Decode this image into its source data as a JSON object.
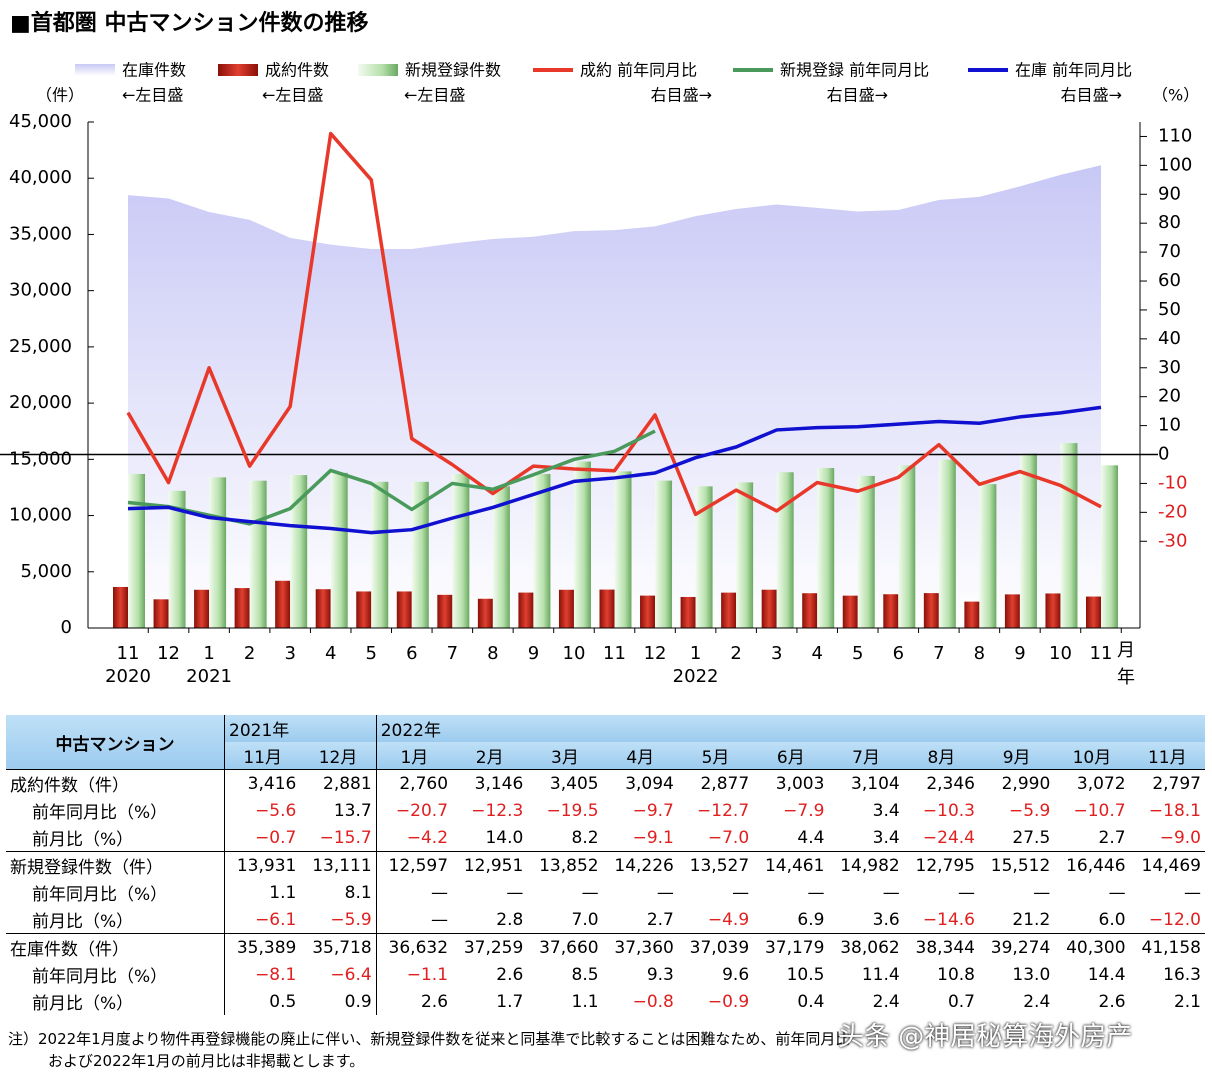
{
  "title": "■首都圏 中古マンション件数の推移",
  "chart_data": {
    "type": "combo",
    "y_unit": "（件）",
    "y2_unit": "（%）",
    "categories": [
      "11",
      "12",
      "1",
      "2",
      "3",
      "4",
      "5",
      "6",
      "7",
      "8",
      "9",
      "10",
      "11",
      "12",
      "1",
      "2",
      "3",
      "4",
      "5",
      "6",
      "7",
      "8",
      "9",
      "10",
      "11"
    ],
    "year_labels": [
      "2020",
      null,
      "2021",
      null,
      null,
      null,
      null,
      null,
      null,
      null,
      null,
      null,
      null,
      null,
      "2022",
      null,
      null,
      null,
      null,
      null,
      null,
      null,
      null,
      null,
      null
    ],
    "x_month_unit": "月",
    "x_year_unit": "年",
    "ylim": [
      0,
      45000
    ],
    "yticks": [
      0,
      {
        "value": 5000,
        "label": "5,000"
      },
      {
        "value": 10000,
        "label": "10,000"
      },
      {
        "value": 15000,
        "label": "15,000"
      },
      {
        "value": 20000,
        "label": "20,000"
      },
      {
        "value": 25000,
        "label": "25,000"
      },
      {
        "value": 30000,
        "label": "30,000"
      },
      {
        "value": 35000,
        "label": "35,000"
      },
      {
        "value": 40000,
        "label": "40,000"
      },
      {
        "value": 45000,
        "label": "45,000"
      }
    ],
    "y2lim": [
      -60,
      115
    ],
    "y2ticks": [
      -30,
      -20,
      -10,
      0,
      10,
      20,
      30,
      40,
      50,
      60,
      70,
      80,
      90,
      100,
      110
    ],
    "zero_line": true,
    "series": [
      {
        "name": "在庫件数",
        "note": "←左目盛",
        "kind": "area",
        "color": "#c8c8f6",
        "values": [
          38500,
          38200,
          37000,
          36300,
          34700,
          34100,
          33700,
          33700,
          34200,
          34600,
          34800,
          35300,
          35389,
          35718,
          36632,
          37259,
          37660,
          37360,
          37039,
          37179,
          38062,
          38344,
          39274,
          40300,
          41158
        ]
      },
      {
        "name": "成約件数",
        "note": "←左目盛",
        "kind": "bar",
        "color": "#c0281c",
        "values": [
          3650,
          2550,
          3400,
          3550,
          4200,
          3450,
          3250,
          3250,
          2950,
          2600,
          3150,
          3400,
          3416,
          2881,
          2760,
          3146,
          3405,
          3094,
          2877,
          3003,
          3104,
          2346,
          2990,
          3072,
          2797
        ]
      },
      {
        "name": "新規登録件数",
        "note": "←左目盛",
        "kind": "bar",
        "color": "#a6d89e",
        "values": [
          13700,
          12200,
          13400,
          13100,
          13600,
          13800,
          13000,
          13000,
          13700,
          12600,
          13700,
          14800,
          13931,
          13111,
          12597,
          12951,
          13852,
          14226,
          13527,
          14461,
          14982,
          12795,
          15512,
          16446,
          14469
        ]
      },
      {
        "name": "成約 前年同月比",
        "note": "右目盛→",
        "kind": "line",
        "axis": "y2",
        "color": "#e8382a",
        "values": [
          14.5,
          -9.7,
          30,
          -4,
          16.6,
          111,
          95,
          5.5,
          -3.5,
          -13.5,
          -4,
          -5,
          -5.6,
          13.7,
          -20.7,
          -12.3,
          -19.5,
          -9.7,
          -12.7,
          -7.9,
          3.4,
          -10.3,
          -5.9,
          -10.7,
          -18.1
        ]
      },
      {
        "name": "新規登録 前年同月比",
        "note": "右目盛→",
        "kind": "line",
        "axis": "y2",
        "color": "#4a9a5c",
        "values": [
          -16.6,
          -18,
          -21,
          -24,
          -18.7,
          -5.5,
          -10,
          -19,
          -10,
          -12,
          -7,
          -1.7,
          1.1,
          8.1,
          null,
          null,
          null,
          null,
          null,
          null,
          null,
          null,
          null,
          null,
          null
        ]
      },
      {
        "name": "在庫 前年同月比",
        "note": "右目盛→",
        "kind": "line",
        "axis": "y2",
        "color": "#1010d0",
        "values": [
          -18.7,
          -18.3,
          -21.8,
          -23.2,
          -24.6,
          -25.6,
          -27,
          -26,
          -22,
          -18.3,
          -13.8,
          -9.3,
          -8.1,
          -6.4,
          -1.1,
          2.6,
          8.5,
          9.3,
          9.6,
          10.5,
          11.4,
          10.8,
          13.0,
          14.4,
          16.3
        ]
      }
    ]
  },
  "table": {
    "corner": "中古マンション",
    "years": [
      "2021年",
      "2022年"
    ],
    "months": [
      "11月",
      "12月",
      "1月",
      "2月",
      "3月",
      "4月",
      "5月",
      "6月",
      "7月",
      "8月",
      "9月",
      "10月",
      "11月"
    ],
    "rows": [
      {
        "label": "成約件数（件）",
        "cells": [
          "3,416",
          "2,881",
          "2,760",
          "3,146",
          "3,405",
          "3,094",
          "2,877",
          "3,003",
          "3,104",
          "2,346",
          "2,990",
          "3,072",
          "2,797"
        ]
      },
      {
        "label": "前年同月比（%）",
        "cells": [
          "−5.6",
          "13.7",
          "−20.7",
          "−12.3",
          "−19.5",
          "−9.7",
          "−12.7",
          "−7.9",
          "3.4",
          "−10.3",
          "−5.9",
          "−10.7",
          "−18.1"
        ]
      },
      {
        "label": "前月比（%）",
        "cells": [
          "−0.7",
          "−15.7",
          "−4.2",
          "14.0",
          "8.2",
          "−9.1",
          "−7.0",
          "4.4",
          "3.4",
          "−24.4",
          "27.5",
          "2.7",
          "−9.0"
        ]
      },
      {
        "label": "新規登録件数（件）",
        "cells": [
          "13,931",
          "13,111",
          "12,597",
          "12,951",
          "13,852",
          "14,226",
          "13,527",
          "14,461",
          "14,982",
          "12,795",
          "15,512",
          "16,446",
          "14,469"
        ]
      },
      {
        "label": "前年同月比（%）",
        "cells": [
          "1.1",
          "8.1",
          "—",
          "—",
          "—",
          "—",
          "—",
          "—",
          "—",
          "—",
          "—",
          "—",
          "—"
        ]
      },
      {
        "label": "前月比（%）",
        "cells": [
          "−6.1",
          "−5.9",
          "—",
          "2.8",
          "7.0",
          "2.7",
          "−4.9",
          "6.9",
          "3.6",
          "−14.6",
          "21.2",
          "6.0",
          "−12.0"
        ]
      },
      {
        "label": "在庫件数（件）",
        "cells": [
          "35,389",
          "35,718",
          "36,632",
          "37,259",
          "37,660",
          "37,360",
          "37,039",
          "37,179",
          "38,062",
          "38,344",
          "39,274",
          "40,300",
          "41,158"
        ]
      },
      {
        "label": "前年同月比（%）",
        "cells": [
          "−8.1",
          "−6.4",
          "−1.1",
          "2.6",
          "8.5",
          "9.3",
          "9.6",
          "10.5",
          "11.4",
          "10.8",
          "13.0",
          "14.4",
          "16.3"
        ]
      },
      {
        "label": "前月比（%）",
        "cells": [
          "0.5",
          "0.9",
          "2.6",
          "1.7",
          "1.1",
          "−0.8",
          "−0.9",
          "0.4",
          "2.4",
          "0.7",
          "2.4",
          "2.6",
          "2.1"
        ]
      }
    ]
  },
  "notes": [
    "注）2022年1月度より物件再登録機能の廃止に伴い、新規登録件数を従来と同基準で比較することは困難なため、前年同月比",
    "および2022年1月の前月比は非掲載とします。"
  ],
  "watermark": "头条 @神居秘算海外房产"
}
